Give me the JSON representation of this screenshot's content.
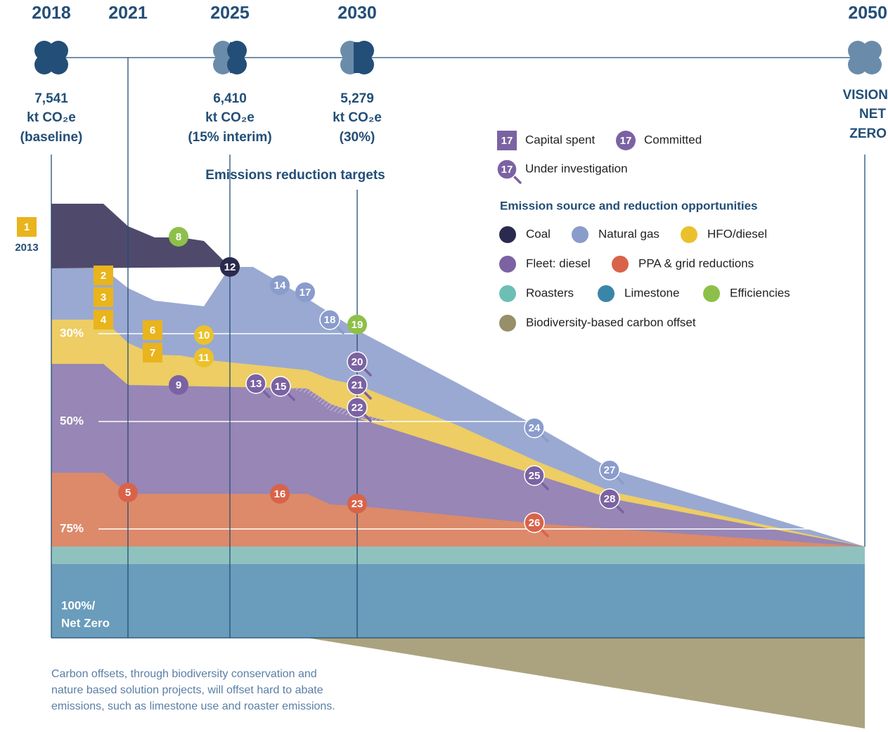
{
  "timeline": {
    "years": [
      "2018",
      "2021",
      "2025",
      "2030",
      "2050"
    ]
  },
  "milestones": [
    {
      "value": "7,541",
      "unit": "kt CO₂e",
      "note": "(baseline)"
    },
    {
      "value": "6,410",
      "unit": "kt CO₂e",
      "note": "(15% interim)"
    },
    {
      "value": "5,279",
      "unit": "kt CO₂e",
      "note": "(30%)"
    }
  ],
  "vision": [
    "VISION",
    "NET",
    "ZERO"
  ],
  "targets_label": "Emissions reduction targets",
  "status_legend": [
    {
      "marker": "17",
      "label": "Capital spent",
      "style": "square"
    },
    {
      "marker": "17",
      "label": "Committed",
      "style": "circle"
    },
    {
      "marker": "17",
      "label": "Under investigation",
      "style": "search"
    }
  ],
  "source_legend": {
    "title": "Emission source and reduction opportunities",
    "items": [
      {
        "label": "Coal",
        "color": "#2a2a4e"
      },
      {
        "label": "Natural gas",
        "color": "#8a9ccc"
      },
      {
        "label": "HFO/diesel",
        "color": "#ebc12b"
      },
      {
        "label": "Fleet: diesel",
        "color": "#7b62a3"
      },
      {
        "label": "PPA & grid reductions",
        "color": "#d9634a"
      },
      {
        "label": "Roasters",
        "color": "#6dbfb6"
      },
      {
        "label": "Limestone",
        "color": "#3a86a8"
      },
      {
        "label": "Efficiencies",
        "color": "#8dc04a"
      },
      {
        "label": "Biodiversity-based carbon offset",
        "color": "#978f68"
      }
    ]
  },
  "levels": [
    "30%",
    "50%",
    "75%"
  ],
  "net_zero": [
    "100%/",
    "Net Zero"
  ],
  "start_year": "2013",
  "markers": [
    {
      "label": "1",
      "style": "square",
      "color": "#e9b41c"
    },
    {
      "label": "2",
      "style": "square",
      "color": "#e9b41c"
    },
    {
      "label": "3",
      "style": "square",
      "color": "#e9b41c"
    },
    {
      "label": "4",
      "style": "square",
      "color": "#e9b41c"
    },
    {
      "label": "6",
      "style": "square",
      "color": "#e9b41c"
    },
    {
      "label": "7",
      "style": "square",
      "color": "#e9b41c"
    },
    {
      "label": "8",
      "style": "circle",
      "color": "#8dc04a"
    },
    {
      "label": "12",
      "style": "circle",
      "color": "#2a2a4e"
    },
    {
      "label": "14",
      "style": "circle",
      "color": "#8a9ccc"
    },
    {
      "label": "17",
      "style": "circle",
      "color": "#8a9ccc"
    },
    {
      "label": "18",
      "style": "search",
      "color": "#8a9ccc"
    },
    {
      "label": "19",
      "style": "circle",
      "color": "#8dc04a"
    },
    {
      "label": "10",
      "style": "circle",
      "color": "#ebc12b"
    },
    {
      "label": "11",
      "style": "circle",
      "color": "#ebc12b"
    },
    {
      "label": "20",
      "style": "search",
      "color": "#7b62a3"
    },
    {
      "label": "21",
      "style": "search",
      "color": "#7b62a3"
    },
    {
      "label": "22",
      "style": "search",
      "color": "#7b62a3"
    },
    {
      "label": "9",
      "style": "circle",
      "color": "#7b62a3"
    },
    {
      "label": "13",
      "style": "search",
      "color": "#7b62a3"
    },
    {
      "label": "15",
      "style": "search",
      "color": "#7b62a3"
    },
    {
      "label": "5",
      "style": "circle",
      "color": "#d9634a"
    },
    {
      "label": "16",
      "style": "circle",
      "color": "#d9634a"
    },
    {
      "label": "23",
      "style": "circle",
      "color": "#d9634a"
    },
    {
      "label": "24",
      "style": "search",
      "color": "#8a9ccc"
    },
    {
      "label": "25",
      "style": "search",
      "color": "#7b62a3"
    },
    {
      "label": "26",
      "style": "search",
      "color": "#d9634a"
    },
    {
      "label": "27",
      "style": "search",
      "color": "#8a9ccc"
    },
    {
      "label": "28",
      "style": "search",
      "color": "#7b62a3"
    }
  ],
  "footnote": [
    "Carbon offsets, through biodiversity conservation and",
    "nature based solution projects, will offset hard to abate",
    "emissions, such as limestone use and roaster emissions."
  ]
}
